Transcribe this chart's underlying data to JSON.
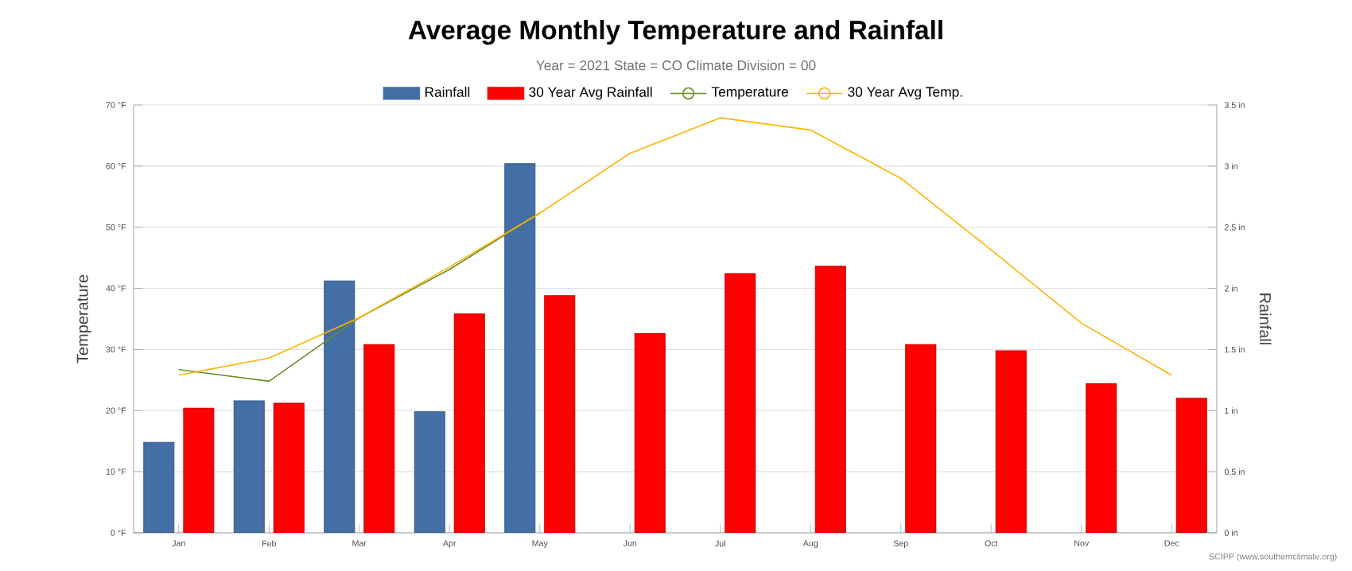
{
  "chart_data": {
    "type": "bar",
    "title": "Average Monthly Temperature and Rainfall",
    "subtitle": "Year = 2021 State = CO Climate Division = 00",
    "categories": [
      "Jan",
      "Feb",
      "Mar",
      "Apr",
      "May",
      "Jun",
      "Jul",
      "Aug",
      "Sep",
      "Oct",
      "Nov",
      "Dec"
    ],
    "series": [
      {
        "name": "Rainfall",
        "axis": "y2",
        "color": "#436fa6",
        "values": [
          0.74,
          1.08,
          2.06,
          0.99,
          3.02,
          null,
          null,
          null,
          null,
          null,
          null,
          null
        ]
      },
      {
        "name": "30 Year Avg Rainfall",
        "axis": "y2",
        "color": "#ff0000",
        "values": [
          1.02,
          1.06,
          1.54,
          1.79,
          1.94,
          1.63,
          2.12,
          2.18,
          1.54,
          1.49,
          1.22,
          1.1
        ]
      },
      {
        "name": "Temperature",
        "type": "line",
        "color": "#6b8e23",
        "values": [
          26.7,
          24.8,
          35.2,
          43.1,
          52.3,
          null,
          null,
          null,
          null,
          null,
          null,
          null
        ]
      },
      {
        "name": "30 Year Avg Temp.",
        "type": "line",
        "color": "#ffb300",
        "values": [
          25.8,
          28.6,
          35.2,
          43.5,
          52.3,
          62.1,
          67.9,
          65.9,
          58.0,
          46.3,
          34.3,
          25.8
        ]
      }
    ],
    "ylabel": "Temperature",
    "y2label": "Rainfall",
    "ylim": [
      0,
      70
    ],
    "yticks": [
      {
        "value": 0,
        "label": "0 °F"
      },
      {
        "value": 10,
        "label": "10 °F"
      },
      {
        "value": 20,
        "label": "20 °F"
      },
      {
        "value": 30,
        "label": "30 °F"
      },
      {
        "value": 40,
        "label": "40 °F"
      },
      {
        "value": 50,
        "label": "50 °F"
      },
      {
        "value": 60,
        "label": "60 °F"
      },
      {
        "value": 70,
        "label": "70 °F"
      }
    ],
    "y2lim": [
      0,
      3.5
    ],
    "y2ticks": [
      {
        "value": 0,
        "label": "0 in"
      },
      {
        "value": 0.5,
        "label": "0.5 in"
      },
      {
        "value": 1,
        "label": "1 in"
      },
      {
        "value": 1.5,
        "label": "1.5 in"
      },
      {
        "value": 2,
        "label": "2 in"
      },
      {
        "value": 2.5,
        "label": "2.5 in"
      },
      {
        "value": 3,
        "label": "3 in"
      },
      {
        "value": 3.5,
        "label": "3.5 in"
      }
    ],
    "grid": "y",
    "legend": "top",
    "annotations": [
      "SCIPP (www.southernclimate.org)"
    ]
  }
}
